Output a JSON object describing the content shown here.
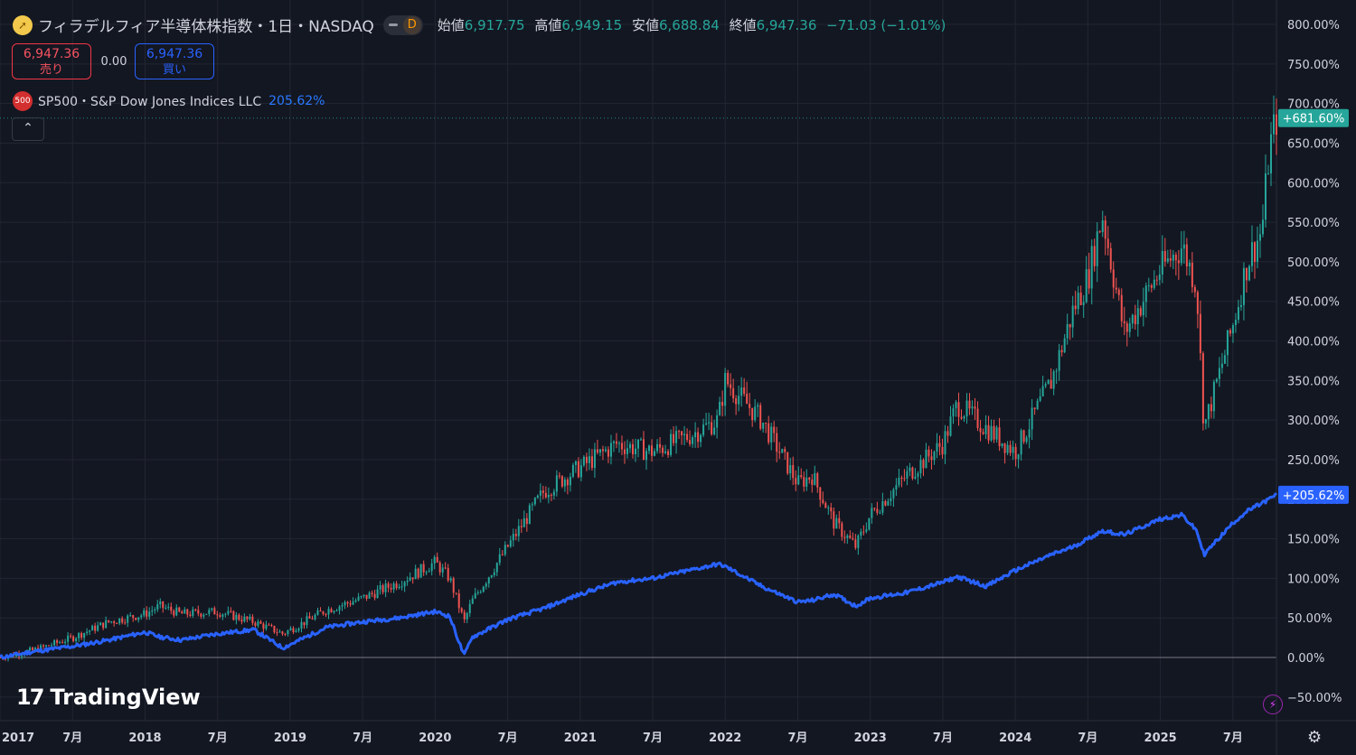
{
  "header": {
    "title": "フィラデルフィア半導体株指数・1日・NASDAQ",
    "interval_badge": "D",
    "ohlc": [
      {
        "label": "始値",
        "value": "6,917.75"
      },
      {
        "label": "高値",
        "value": "6,949.15"
      },
      {
        "label": "安値",
        "value": "6,688.84"
      },
      {
        "label": "終値",
        "value": "6,947.36"
      }
    ],
    "change": "−71.03 (−1.01%)"
  },
  "trade": {
    "sell_price": "6,947.36",
    "sell_label": "売り",
    "spread": "0.00",
    "buy_price": "6,947.36",
    "buy_label": "買い"
  },
  "comparison": {
    "icon_text": "500",
    "label": "SP500・S&P Dow Jones Indices LLC",
    "value": "205.62%"
  },
  "collapse_icon": "chevron-up-icon",
  "branding": {
    "logo_mark": "17",
    "logo_text": "TradingView"
  },
  "colors": {
    "background": "#131722",
    "up": "#26a69a",
    "down": "#ef5350",
    "comparison_line": "#2962ff",
    "grid": "#232632"
  },
  "chart_data": {
    "type": "line",
    "y_scale": "percent",
    "ylim": [
      -60,
      810
    ],
    "y_ticks": [
      "800.00%",
      "750.00%",
      "700.00%",
      "650.00%",
      "600.00%",
      "550.00%",
      "500.00%",
      "450.00%",
      "400.00%",
      "350.00%",
      "300.00%",
      "250.00%",
      "200.00%",
      "150.00%",
      "100.00%",
      "50.00%",
      "0.00%",
      "−50.00%"
    ],
    "y_tick_values": [
      800,
      750,
      700,
      650,
      600,
      550,
      500,
      450,
      400,
      350,
      300,
      250,
      200,
      150,
      100,
      50,
      0,
      -50
    ],
    "x_ticks": [
      "2017",
      "7月",
      "2018",
      "7月",
      "2019",
      "7月",
      "2020",
      "7月",
      "2021",
      "7月",
      "2022",
      "7月",
      "2023",
      "7月",
      "2024",
      "7月",
      "2025",
      "7月"
    ],
    "x_tick_dates": [
      2017.0,
      2017.5,
      2018.0,
      2018.5,
      2019.0,
      2019.5,
      2020.0,
      2020.5,
      2021.0,
      2021.5,
      2022.0,
      2022.5,
      2023.0,
      2023.5,
      2024.0,
      2024.5,
      2025.0,
      2025.5
    ],
    "xlim": [
      2017.0,
      2025.8
    ],
    "series": [
      {
        "name": "フィラデルフィア半導体株指数",
        "style": "candles",
        "last_label": "+681.60%",
        "x": [
          2017.0,
          2017.25,
          2017.5,
          2017.75,
          2018.0,
          2018.1,
          2018.25,
          2018.5,
          2018.75,
          2018.95,
          2019.25,
          2019.5,
          2019.75,
          2020.0,
          2020.1,
          2020.2,
          2020.25,
          2020.5,
          2020.75,
          2021.0,
          2021.25,
          2021.5,
          2021.75,
          2021.95,
          2022.0,
          2022.25,
          2022.5,
          2022.6,
          2022.75,
          2022.9,
          2023.0,
          2023.25,
          2023.5,
          2023.6,
          2023.8,
          2024.0,
          2024.25,
          2024.4,
          2024.5,
          2024.6,
          2024.75,
          2025.0,
          2025.15,
          2025.25,
          2025.3,
          2025.5,
          2025.6,
          2025.7,
          2025.75,
          2025.8
        ],
        "y": [
          0,
          10,
          25,
          45,
          55,
          65,
          55,
          58,
          45,
          30,
          60,
          75,
          95,
          120,
          100,
          45,
          70,
          140,
          210,
          240,
          270,
          260,
          280,
          300,
          350,
          300,
          220,
          230,
          170,
          140,
          180,
          230,
          270,
          320,
          290,
          260,
          350,
          440,
          480,
          560,
          410,
          490,
          520,
          470,
          290,
          420,
          500,
          540,
          640,
          681.6
        ]
      },
      {
        "name": "SP500",
        "style": "line",
        "last_label": "+205.62%",
        "x": [
          2017.0,
          2017.25,
          2017.5,
          2017.75,
          2018.0,
          2018.1,
          2018.25,
          2018.5,
          2018.75,
          2018.95,
          2019.25,
          2019.5,
          2019.75,
          2020.0,
          2020.1,
          2020.2,
          2020.25,
          2020.5,
          2020.75,
          2021.0,
          2021.25,
          2021.5,
          2021.75,
          2021.95,
          2022.0,
          2022.25,
          2022.5,
          2022.6,
          2022.75,
          2022.9,
          2023.0,
          2023.25,
          2023.5,
          2023.6,
          2023.8,
          2024.0,
          2024.25,
          2024.4,
          2024.5,
          2024.6,
          2024.75,
          2025.0,
          2025.15,
          2025.25,
          2025.3,
          2025.5,
          2025.6,
          2025.7,
          2025.75,
          2025.8
        ],
        "y": [
          0,
          8,
          14,
          22,
          32,
          26,
          22,
          30,
          35,
          12,
          38,
          45,
          50,
          58,
          52,
          2,
          25,
          48,
          62,
          80,
          95,
          100,
          110,
          118,
          115,
          90,
          70,
          72,
          80,
          65,
          75,
          82,
          95,
          102,
          90,
          110,
          130,
          140,
          150,
          160,
          155,
          175,
          180,
          160,
          130,
          170,
          185,
          195,
          200,
          205.62
        ]
      }
    ]
  }
}
